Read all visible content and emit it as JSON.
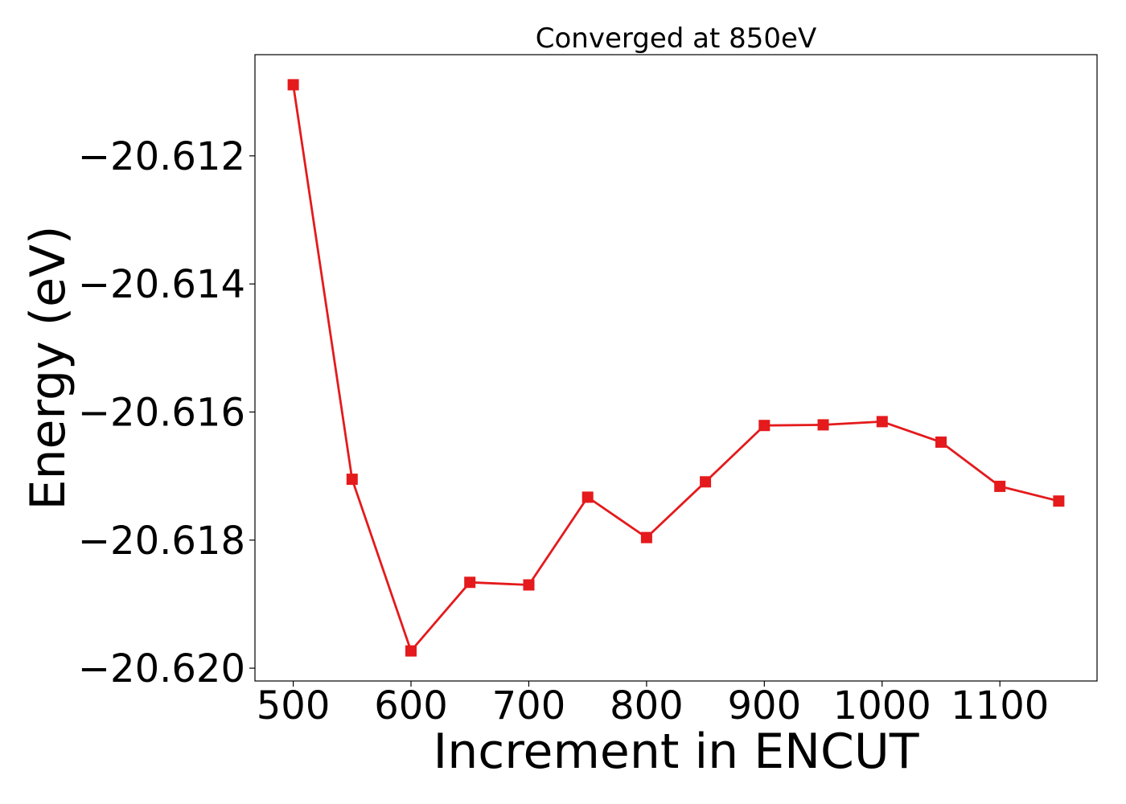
{
  "chart_data": {
    "type": "line",
    "title": "Converged at 850eV",
    "xlabel": "Increment in ENCUT",
    "ylabel": "Energy (eV)",
    "x": [
      500,
      550,
      600,
      650,
      700,
      750,
      800,
      850,
      900,
      950,
      1000,
      1050,
      1100,
      1150
    ],
    "series": [
      {
        "values": [
          -20.61089,
          -20.61705,
          -20.61973,
          -20.61866,
          -20.6187,
          -20.61733,
          -20.61796,
          -20.61709,
          -20.61621,
          -20.6162,
          -20.61615,
          -20.61647,
          -20.61716,
          -20.61739
        ],
        "color": "#e41a1c",
        "marker": "square"
      }
    ],
    "xlim": [
      467.5,
      1182.5
    ],
    "ylim": [
      -20.6202,
      -20.61042
    ],
    "xticks": [
      500,
      600,
      700,
      800,
      900,
      1000,
      1100
    ],
    "xtick_labels": [
      "500",
      "600",
      "700",
      "800",
      "900",
      "1000",
      "1100"
    ],
    "yticks": [
      -20.612,
      -20.614,
      -20.616,
      -20.618,
      -20.62
    ],
    "ytick_labels": [
      "−20.612",
      "−20.614",
      "−20.616",
      "−20.618",
      "−20.620"
    ],
    "grid": false
  }
}
